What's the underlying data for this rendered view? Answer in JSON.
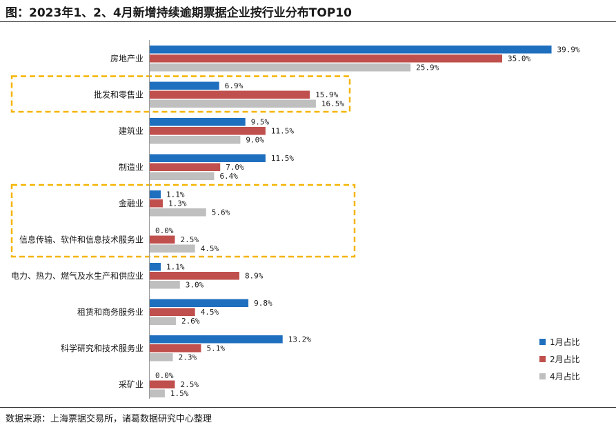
{
  "title": "图：2023年1、2、4月新增持续逾期票据企业按行业分布TOP10",
  "source": "数据来源：上海票据交易所，诸葛数据研究中心整理",
  "colors": {
    "s1": "#1f6fbf",
    "s2": "#c0504d",
    "s3": "#bfbfbf",
    "highlight": "#f5b400"
  },
  "chart_data": {
    "type": "bar",
    "orientation": "horizontal",
    "categories": [
      "房地产业",
      "批发和零售业",
      "建筑业",
      "制造业",
      "金融业",
      "信息传输、软件和信息技术服务业",
      "电力、热力、燃气及水生产和供应业",
      "租赁和商务服务业",
      "科学研究和技术服务业",
      "采矿业"
    ],
    "series": [
      {
        "name": "1月占比",
        "values": [
          39.9,
          6.9,
          9.5,
          11.5,
          1.1,
          0.0,
          1.1,
          9.8,
          13.2,
          0.0
        ],
        "labels": [
          "39.9%",
          "6.9%",
          "9.5%",
          "11.5%",
          "1.1%",
          "0.0%",
          "1.1%",
          "9.8%",
          "13.2%",
          "0.0%"
        ]
      },
      {
        "name": "2月占比",
        "values": [
          35.0,
          15.9,
          11.5,
          7.0,
          1.3,
          2.5,
          8.9,
          4.5,
          5.1,
          2.5
        ],
        "labels": [
          "35.0%",
          "15.9%",
          "11.5%",
          "7.0%",
          "1.3%",
          "2.5%",
          "8.9%",
          "4.5%",
          "5.1%",
          "2.5%"
        ]
      },
      {
        "name": "4月占比",
        "values": [
          25.9,
          16.5,
          9.0,
          6.4,
          5.6,
          4.5,
          3.0,
          2.6,
          2.3,
          1.5
        ],
        "labels": [
          "25.9%",
          "16.5%",
          "9.0%",
          "6.4%",
          "5.6%",
          "4.5%",
          "3.0%",
          "2.6%",
          "2.3%",
          "1.5%"
        ]
      }
    ],
    "xlim": [
      0,
      40
    ],
    "legend": "bottom-right",
    "grid": false,
    "highlighted_categories": [
      [
        "批发和零售业"
      ],
      [
        "金融业",
        "信息传输、软件和信息技术服务业"
      ]
    ]
  }
}
